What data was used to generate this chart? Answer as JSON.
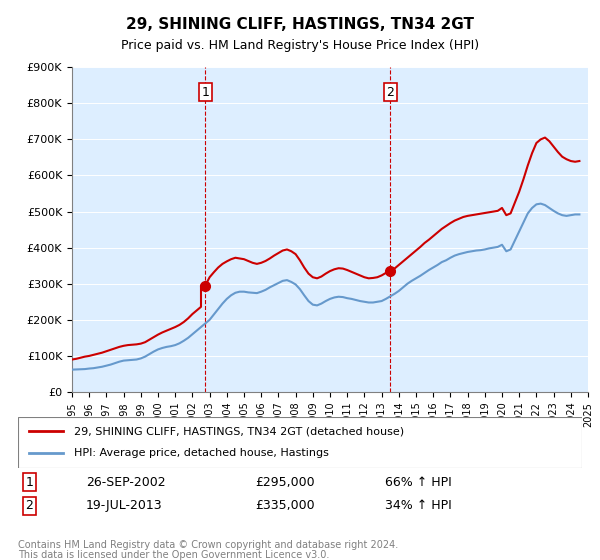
{
  "title": "29, SHINING CLIFF, HASTINGS, TN34 2GT",
  "subtitle": "Price paid vs. HM Land Registry's House Price Index (HPI)",
  "ylabel": "",
  "ylim": [
    0,
    900000
  ],
  "yticks": [
    0,
    100000,
    200000,
    300000,
    400000,
    500000,
    600000,
    700000,
    800000,
    900000
  ],
  "ytick_labels": [
    "£0",
    "£100K",
    "£200K",
    "£300K",
    "£400K",
    "£500K",
    "£600K",
    "£700K",
    "£800K",
    "£900K"
  ],
  "hpi_color": "#6699cc",
  "price_color": "#cc0000",
  "marker_color": "#cc0000",
  "vline_color": "#cc0000",
  "background_color": "#ddeeff",
  "plot_bg": "#ddeeff",
  "transaction1": {
    "date": "26-SEP-2002",
    "price": 295000,
    "label": "1",
    "hpi_pct": "66% ↑ HPI"
  },
  "transaction2": {
    "date": "19-JUL-2013",
    "price": 335000,
    "label": "2",
    "hpi_pct": "34% ↑ HPI"
  },
  "legend_line1": "29, SHINING CLIFF, HASTINGS, TN34 2GT (detached house)",
  "legend_line2": "HPI: Average price, detached house, Hastings",
  "footer1": "Contains HM Land Registry data © Crown copyright and database right 2024.",
  "footer2": "This data is licensed under the Open Government Licence v3.0.",
  "hpi_data": {
    "years": [
      1995.0,
      1995.25,
      1995.5,
      1995.75,
      1996.0,
      1996.25,
      1996.5,
      1996.75,
      1997.0,
      1997.25,
      1997.5,
      1997.75,
      1998.0,
      1998.25,
      1998.5,
      1998.75,
      1999.0,
      1999.25,
      1999.5,
      1999.75,
      2000.0,
      2000.25,
      2000.5,
      2000.75,
      2001.0,
      2001.25,
      2001.5,
      2001.75,
      2002.0,
      2002.25,
      2002.5,
      2002.75,
      2003.0,
      2003.25,
      2003.5,
      2003.75,
      2004.0,
      2004.25,
      2004.5,
      2004.75,
      2005.0,
      2005.25,
      2005.5,
      2005.75,
      2006.0,
      2006.25,
      2006.5,
      2006.75,
      2007.0,
      2007.25,
      2007.5,
      2007.75,
      2008.0,
      2008.25,
      2008.5,
      2008.75,
      2009.0,
      2009.25,
      2009.5,
      2009.75,
      2010.0,
      2010.25,
      2010.5,
      2010.75,
      2011.0,
      2011.25,
      2011.5,
      2011.75,
      2012.0,
      2012.25,
      2012.5,
      2012.75,
      2013.0,
      2013.25,
      2013.5,
      2013.75,
      2014.0,
      2014.25,
      2014.5,
      2014.75,
      2015.0,
      2015.25,
      2015.5,
      2015.75,
      2016.0,
      2016.25,
      2016.5,
      2016.75,
      2017.0,
      2017.25,
      2017.5,
      2017.75,
      2018.0,
      2018.25,
      2018.5,
      2018.75,
      2019.0,
      2019.25,
      2019.5,
      2019.75,
      2020.0,
      2020.25,
      2020.5,
      2020.75,
      2021.0,
      2021.25,
      2021.5,
      2021.75,
      2022.0,
      2022.25,
      2022.5,
      2022.75,
      2023.0,
      2023.25,
      2023.5,
      2023.75,
      2024.0,
      2024.25,
      2024.5
    ],
    "values": [
      62000,
      62500,
      63000,
      63500,
      65000,
      66000,
      68000,
      70000,
      73000,
      76000,
      80000,
      84000,
      87000,
      88000,
      89000,
      90000,
      93000,
      98000,
      105000,
      112000,
      118000,
      122000,
      125000,
      127000,
      130000,
      135000,
      142000,
      150000,
      160000,
      170000,
      180000,
      190000,
      200000,
      215000,
      230000,
      245000,
      258000,
      268000,
      275000,
      278000,
      278000,
      276000,
      275000,
      274000,
      278000,
      283000,
      290000,
      296000,
      302000,
      308000,
      310000,
      305000,
      298000,
      285000,
      268000,
      252000,
      242000,
      240000,
      245000,
      252000,
      258000,
      262000,
      264000,
      263000,
      260000,
      258000,
      255000,
      252000,
      250000,
      248000,
      248000,
      250000,
      252000,
      258000,
      265000,
      272000,
      280000,
      290000,
      300000,
      308000,
      315000,
      322000,
      330000,
      338000,
      345000,
      352000,
      360000,
      365000,
      372000,
      378000,
      382000,
      385000,
      388000,
      390000,
      392000,
      393000,
      395000,
      398000,
      400000,
      402000,
      408000,
      390000,
      395000,
      420000,
      445000,
      470000,
      495000,
      510000,
      520000,
      522000,
      518000,
      510000,
      502000,
      495000,
      490000,
      488000,
      490000,
      492000,
      492000
    ]
  },
  "price_data": {
    "years": [
      1995.0,
      1995.25,
      1995.5,
      1995.75,
      1996.0,
      1996.25,
      1996.5,
      1996.75,
      1997.0,
      1997.25,
      1997.5,
      1997.75,
      1998.0,
      1998.25,
      1998.5,
      1998.75,
      1999.0,
      1999.25,
      1999.5,
      1999.75,
      2000.0,
      2000.25,
      2000.5,
      2000.75,
      2001.0,
      2001.25,
      2001.5,
      2001.75,
      2002.0,
      2002.25,
      2002.5,
      2002.5,
      2002.75,
      2003.0,
      2003.25,
      2003.5,
      2003.75,
      2004.0,
      2004.25,
      2004.5,
      2004.75,
      2005.0,
      2005.25,
      2005.5,
      2005.75,
      2006.0,
      2006.25,
      2006.5,
      2006.75,
      2007.0,
      2007.25,
      2007.5,
      2007.75,
      2008.0,
      2008.25,
      2008.5,
      2008.75,
      2009.0,
      2009.25,
      2009.5,
      2009.75,
      2010.0,
      2010.25,
      2010.5,
      2010.75,
      2011.0,
      2011.25,
      2011.5,
      2011.75,
      2012.0,
      2012.25,
      2012.5,
      2012.75,
      2013.0,
      2013.25,
      2013.5,
      2013.75,
      2014.0,
      2014.25,
      2014.5,
      2014.75,
      2015.0,
      2015.25,
      2015.5,
      2015.75,
      2016.0,
      2016.25,
      2016.5,
      2016.75,
      2017.0,
      2017.25,
      2017.5,
      2017.75,
      2018.0,
      2018.25,
      2018.5,
      2018.75,
      2019.0,
      2019.25,
      2019.5,
      2019.75,
      2020.0,
      2020.25,
      2020.5,
      2020.75,
      2021.0,
      2021.25,
      2021.5,
      2021.75,
      2022.0,
      2022.25,
      2022.5,
      2022.75,
      2023.0,
      2023.25,
      2023.5,
      2023.75,
      2024.0,
      2024.25,
      2024.5
    ],
    "values": [
      90000,
      92000,
      95000,
      98000,
      100000,
      103000,
      106000,
      109000,
      113000,
      117000,
      121000,
      125000,
      128000,
      130000,
      131000,
      132000,
      134000,
      138000,
      145000,
      152000,
      159000,
      165000,
      170000,
      175000,
      180000,
      186000,
      194000,
      204000,
      216000,
      226000,
      236000,
      295000,
      295000,
      318000,
      332000,
      345000,
      355000,
      362000,
      368000,
      372000,
      370000,
      368000,
      363000,
      358000,
      355000,
      358000,
      363000,
      370000,
      378000,
      385000,
      392000,
      395000,
      390000,
      382000,
      365000,
      345000,
      328000,
      318000,
      315000,
      320000,
      328000,
      335000,
      340000,
      343000,
      342000,
      338000,
      333000,
      328000,
      323000,
      318000,
      315000,
      316000,
      318000,
      323000,
      330000,
      335000,
      342000,
      352000,
      362000,
      372000,
      382000,
      392000,
      402000,
      413000,
      422000,
      432000,
      442000,
      452000,
      460000,
      468000,
      475000,
      480000,
      485000,
      488000,
      490000,
      492000,
      494000,
      496000,
      498000,
      500000,
      502000,
      510000,
      490000,
      495000,
      525000,
      555000,
      590000,
      628000,
      662000,
      690000,
      700000,
      705000,
      695000,
      680000,
      665000,
      652000,
      645000,
      640000,
      638000,
      640000
    ]
  }
}
